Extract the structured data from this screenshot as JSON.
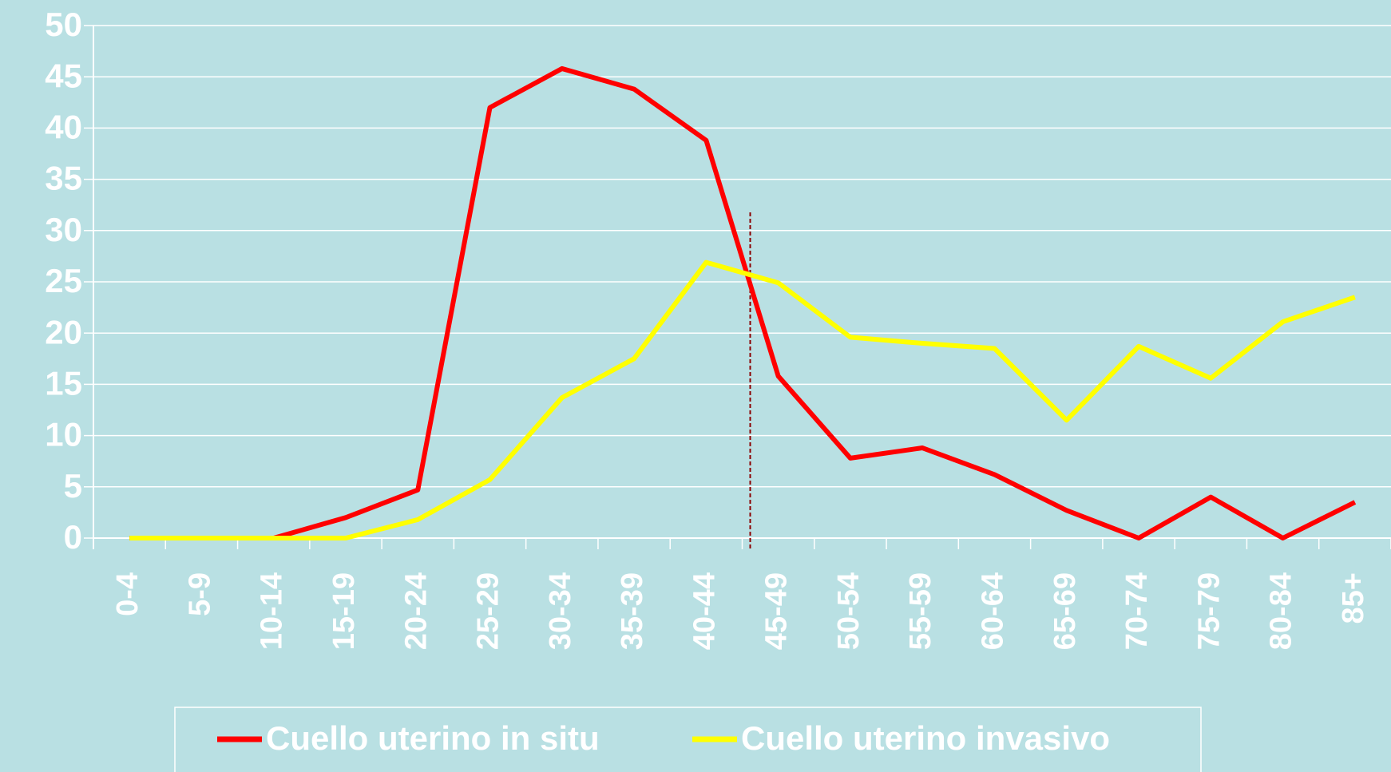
{
  "chart_data": {
    "type": "line",
    "categories": [
      "0-4",
      "5-9",
      "10-14",
      "15-19",
      "20-24",
      "25-29",
      "30-34",
      "35-39",
      "40-44",
      "45-49",
      "50-54",
      "55-59",
      "60-64",
      "65-69",
      "70-74",
      "75-79",
      "80-84",
      "85+"
    ],
    "series": [
      {
        "name": "Cuello uterino in situ",
        "color": "#ff0000",
        "values": [
          0,
          0,
          0,
          2,
          4.7,
          42,
          45.8,
          43.8,
          38.8,
          15.8,
          7.8,
          8.8,
          6.2,
          2.7,
          0,
          4,
          0,
          3.5
        ]
      },
      {
        "name": "Cuello uterino invasivo",
        "color": "#ffff00",
        "values": [
          0,
          0,
          0,
          0,
          1.8,
          5.7,
          13.7,
          17.5,
          26.9,
          24.9,
          19.6,
          19,
          18.5,
          11.5,
          18.7,
          15.6,
          21.1,
          23.5
        ]
      }
    ],
    "ylim": [
      0,
      50
    ],
    "yticks": [
      0,
      5,
      10,
      15,
      20,
      25,
      30,
      35,
      40,
      45,
      50
    ],
    "grid": true
  }
}
